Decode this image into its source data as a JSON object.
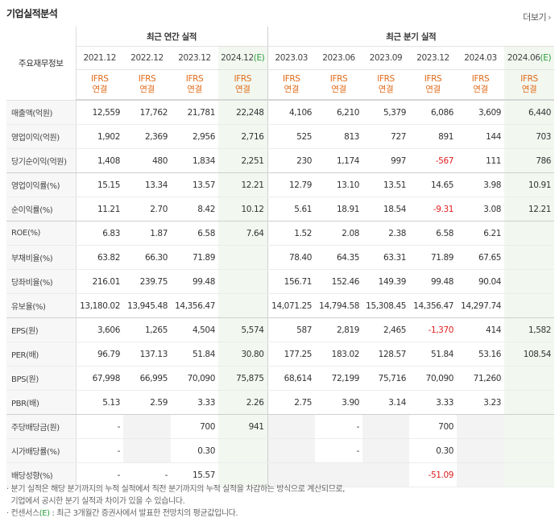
{
  "header": {
    "title": "기업실적분석",
    "more_label": "더보기",
    "more_arrow": "›"
  },
  "table": {
    "corner_label": "주요재무정보",
    "group_annual": "최근 연간 실적",
    "group_quarter": "최근 분기 실적",
    "annual_periods": [
      "2021.12",
      "2022.12",
      "2023.12",
      "2024.12"
    ],
    "annual_est_tag": "(E)",
    "quarter_periods": [
      "2023.03",
      "2023.06",
      "2023.09",
      "2023.12",
      "2024.03",
      "2024.06"
    ],
    "quarter_est_tag": "(E)",
    "ifrs_line1": "IFRS",
    "ifrs_line2": "연결",
    "rows": [
      {
        "label": "매출액(억원)",
        "cells": [
          "12,559",
          "17,762",
          "21,781",
          "22,248",
          "4,106",
          "6,210",
          "5,379",
          "6,086",
          "3,609",
          "6,440"
        ]
      },
      {
        "label": "영업이익(억원)",
        "cells": [
          "1,902",
          "2,369",
          "2,956",
          "2,716",
          "525",
          "813",
          "727",
          "891",
          "144",
          "703"
        ]
      },
      {
        "label": "당기순이익(억원)",
        "cells": [
          "1,408",
          "480",
          "1,834",
          "2,251",
          "230",
          "1,174",
          "997",
          "-567",
          "111",
          "786"
        ]
      },
      {
        "label": "영업이익률(%)",
        "cells": [
          "15.15",
          "13.34",
          "13.57",
          "12.21",
          "12.79",
          "13.10",
          "13.51",
          "14.65",
          "3.98",
          "10.91"
        ]
      },
      {
        "label": "순이익률(%)",
        "cells": [
          "11.21",
          "2.70",
          "8.42",
          "10.12",
          "5.61",
          "18.91",
          "18.54",
          "-9.31",
          "3.08",
          "12.21"
        ]
      },
      {
        "label": "ROE(%)",
        "cells": [
          "6.83",
          "1.87",
          "6.58",
          "7.64",
          "1.52",
          "2.08",
          "2.38",
          "6.58",
          "6.21",
          ""
        ]
      },
      {
        "label": "부채비율(%)",
        "cells": [
          "63.82",
          "66.30",
          "71.89",
          "",
          "78.40",
          "64.35",
          "63.31",
          "71.89",
          "67.65",
          ""
        ]
      },
      {
        "label": "당좌비율(%)",
        "cells": [
          "216.01",
          "239.75",
          "99.48",
          "",
          "156.71",
          "152.46",
          "149.39",
          "99.48",
          "90.04",
          ""
        ]
      },
      {
        "label": "유보율(%)",
        "cells": [
          "13,180.02",
          "13,945.48",
          "14,356.47",
          "",
          "14,071.25",
          "14,794.58",
          "15,308.45",
          "14,356.47",
          "14,297.74",
          ""
        ]
      },
      {
        "label": "EPS(원)",
        "cells": [
          "3,606",
          "1,265",
          "4,504",
          "5,574",
          "587",
          "2,819",
          "2,465",
          "-1,370",
          "414",
          "1,582"
        ]
      },
      {
        "label": "PER(배)",
        "cells": [
          "96.79",
          "137.13",
          "51.84",
          "30.80",
          "177.25",
          "183.02",
          "128.57",
          "51.84",
          "53.16",
          "108.54"
        ]
      },
      {
        "label": "BPS(원)",
        "cells": [
          "67,998",
          "66,995",
          "70,090",
          "75,875",
          "68,614",
          "72,199",
          "75,716",
          "70,090",
          "71,260",
          ""
        ]
      },
      {
        "label": "PBR(배)",
        "cells": [
          "5.13",
          "2.59",
          "3.33",
          "2.26",
          "2.75",
          "3.90",
          "3.14",
          "3.33",
          "3.23",
          ""
        ]
      },
      {
        "label": "주당배당금(원)",
        "cells": [
          "-",
          "",
          "700",
          "941",
          "",
          "-",
          "",
          "700",
          "",
          ""
        ]
      },
      {
        "label": "시가배당률(%)",
        "cells": [
          "-",
          "",
          "0.30",
          "",
          "",
          "-",
          "",
          "0.30",
          "",
          ""
        ]
      },
      {
        "label": "배당성향(%)",
        "cells": [
          "-",
          "-",
          "15.57",
          "",
          "",
          "",
          "",
          "-51.09",
          "",
          ""
        ]
      }
    ]
  },
  "notes": {
    "line1": "· 분기 실적은 해당 분기까지의 누적 실적에서 직전 분기까지의 누적 실적을 차감하는 방식으로 계산되므로,",
    "line2": "  기업에서 공시한 분기 실적과 차이가 있을 수 있습니다.",
    "line3_pre": "· 컨센서스",
    "line3_e": "(E)",
    "line3_post": ": 최근 3개월간 증권사에서 발표한 전망치의 평균값입니다."
  }
}
